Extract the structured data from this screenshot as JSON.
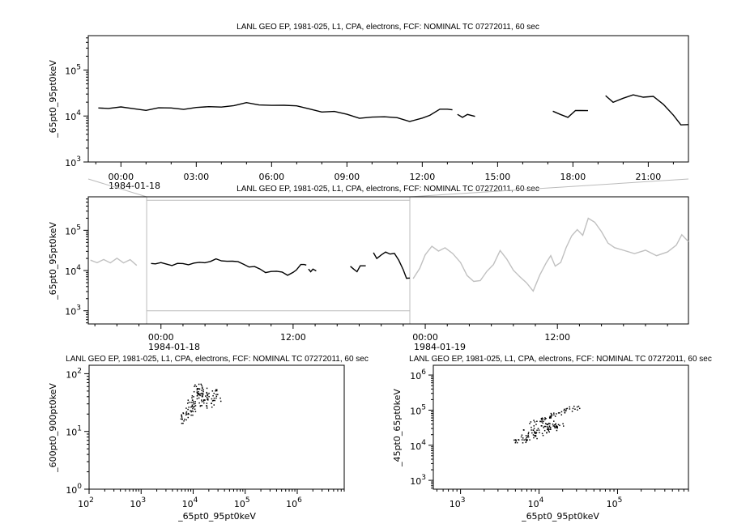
{
  "chart_data": [
    {
      "type": "line",
      "title": "LANL GEO EP, 1981-025, L1, CPA, electrons, FCF: NOMINAL TC 07272011, 60 sec",
      "ylabel": "_65pt0_95pt0keV",
      "xlabel": "",
      "x_units": "hours from 1984-01-18 00:00",
      "xlim": [
        -1.3,
        22.6
      ],
      "ylim": [
        1000,
        560000
      ],
      "yscale": "log",
      "x_tick_labels": [
        "00:00",
        "03:00",
        "06:00",
        "09:00",
        "12:00",
        "15:00",
        "18:00",
        "21:00"
      ],
      "date_label": "1984-01-18",
      "series": [
        {
          "color": "#000000",
          "segments": [
            [
              [
                -0.9,
                16000
              ],
              [
                -0.5,
                15500
              ],
              [
                0,
                15000
              ],
              [
                0.5,
                14000
              ],
              [
                1,
                14200
              ],
              [
                1.5,
                15000
              ],
              [
                2,
                14000
              ],
              [
                2.5,
                14500
              ],
              [
                3,
                16000
              ],
              [
                3.5,
                15000
              ],
              [
                4,
                15500
              ],
              [
                4.5,
                18000
              ],
              [
                5,
                19000
              ],
              [
                5.5,
                16500
              ],
              [
                6,
                18000
              ],
              [
                6.5,
                17500
              ],
              [
                7,
                15500
              ],
              [
                7.5,
                14500
              ],
              [
                8,
                13000
              ],
              [
                8.5,
                12000
              ],
              [
                9,
                10500
              ],
              [
                9.5,
                9500
              ],
              [
                10,
                9500
              ],
              [
                10.5,
                9000
              ],
              [
                11,
                9500
              ],
              [
                11.5,
                8000
              ],
              [
                12,
                8500
              ],
              [
                12.3,
                10500
              ],
              [
                12.7,
                14000
              ],
              [
                13,
                15000
              ],
              [
                13.2,
                13000
              ]
            ],
            [
              [
                13.4,
                11500
              ],
              [
                13.6,
                9000
              ],
              [
                13.8,
                11000
              ],
              [
                14.1,
                10500
              ]
            ],
            [
              [
                17.2,
                12000
              ],
              [
                17.5,
                11000
              ],
              [
                17.8,
                10000
              ],
              [
                18.1,
                13500
              ],
              [
                18.3,
                12500
              ],
              [
                18.6,
                13500
              ]
            ],
            [
              [
                19.3,
                26000
              ],
              [
                19.6,
                19000
              ],
              [
                20,
                23000
              ],
              [
                20.4,
                27000
              ],
              [
                20.8,
                24000
              ],
              [
                21.2,
                25000
              ],
              [
                21.6,
                17000
              ],
              [
                22,
                10000
              ],
              [
                22.3,
                6000
              ],
              [
                22.6,
                6500
              ]
            ]
          ]
        }
      ]
    },
    {
      "type": "line",
      "title": "LANL GEO EP, 1981-025, L1, CPA, electrons, FCF: NOMINAL TC 07272011, 60 sec",
      "ylabel": "_65pt0_95pt0keV",
      "x_units": "hours from 1984-01-18 00:00",
      "xlim": [
        -6.6,
        47.9
      ],
      "ylim": [
        470,
        680000
      ],
      "yscale": "log",
      "x_tick_labels": [
        "00:00",
        "12:00",
        "00:00",
        "12:00"
      ],
      "date_labels": [
        "1984-01-18",
        "1984-01-19"
      ],
      "highlight_range": [
        -1.3,
        22.6
      ],
      "series": [
        {
          "color": "#c0c0c0",
          "segments": [
            [
              [
                -6.4,
                17000
              ],
              [
                -5.8,
                16500
              ],
              [
                -5.2,
                18000
              ],
              [
                -4.6,
                16000
              ],
              [
                -4,
                20000
              ],
              [
                -3.4,
                15500
              ],
              [
                -2.8,
                19000
              ],
              [
                -2.2,
                13000
              ]
            ],
            [
              [
                22.9,
                6000
              ],
              [
                23.5,
                12000
              ],
              [
                24,
                25000
              ],
              [
                24.6,
                40000
              ],
              [
                25.2,
                30000
              ],
              [
                25.8,
                38000
              ],
              [
                26.5,
                25000
              ],
              [
                27.2,
                15000
              ],
              [
                27.8,
                8000
              ],
              [
                28.4,
                5000
              ],
              [
                29,
                6000
              ],
              [
                29.6,
                9000
              ],
              [
                30.2,
                15000
              ],
              [
                30.8,
                30000
              ],
              [
                31.4,
                20000
              ],
              [
                32,
                10000
              ],
              [
                32.6,
                7000
              ],
              [
                33.2,
                5000
              ],
              [
                33.8,
                3000
              ],
              [
                34.4,
                8000
              ],
              [
                35,
                15000
              ],
              [
                35.4,
                22000
              ],
              [
                35.8,
                12000
              ],
              [
                36.3,
                16000
              ],
              [
                36.8,
                40000
              ],
              [
                37.3,
                70000
              ],
              [
                37.8,
                100000
              ],
              [
                38.3,
                80000
              ],
              [
                38.8,
                200000
              ],
              [
                39.4,
                160000
              ],
              [
                40,
                90000
              ],
              [
                40.6,
                50000
              ],
              [
                41.2,
                35000
              ],
              [
                42,
                30000
              ],
              [
                43,
                28000
              ],
              [
                44,
                30000
              ],
              [
                45,
                25000
              ],
              [
                46,
                27000
              ],
              [
                46.8,
                40000
              ],
              [
                47.3,
                80000
              ],
              [
                47.9,
                50000
              ]
            ]
          ]
        },
        {
          "color": "#000000",
          "segments": "same as panel 1"
        }
      ]
    },
    {
      "type": "scatter",
      "title": "LANL GEO EP, 1981-025, L1, CPA, electrons, FCF: NOMINAL TC 07272011, 60 sec",
      "xlabel": "_65pt0_95pt0keV",
      "ylabel": "_600pt0_900pt0keV",
      "xscale": "log",
      "yscale": "log",
      "xlim": [
        100,
        8000000
      ],
      "ylim": [
        1,
        140
      ],
      "points": [
        [
          6000,
          15
        ],
        [
          6500,
          18
        ],
        [
          7000,
          20
        ],
        [
          6200,
          17
        ],
        [
          7500,
          22
        ],
        [
          8000,
          25
        ],
        [
          9000,
          30
        ],
        [
          9500,
          35
        ],
        [
          10000,
          28
        ],
        [
          10500,
          40
        ],
        [
          11000,
          45
        ],
        [
          12000,
          50
        ],
        [
          12500,
          42
        ],
        [
          13000,
          55
        ],
        [
          14000,
          48
        ],
        [
          15000,
          45
        ],
        [
          15500,
          40
        ],
        [
          16000,
          52
        ],
        [
          17000,
          38
        ],
        [
          18000,
          44
        ],
        [
          20000,
          35
        ],
        [
          22000,
          42
        ],
        [
          25000,
          46
        ],
        [
          28000,
          50
        ],
        [
          30000,
          38
        ],
        [
          12000,
          30
        ],
        [
          10000,
          25
        ],
        [
          9000,
          22
        ],
        [
          14000,
          35
        ],
        [
          16000,
          30
        ],
        [
          11000,
          60
        ],
        [
          13500,
          62
        ],
        [
          20000,
          28
        ],
        [
          8500,
          32
        ],
        [
          24000,
          33
        ]
      ]
    },
    {
      "type": "scatter",
      "title": "LANL GEO EP, 1981-025, L1, CPA, electrons, FCF: NOMINAL TC 07272011, 60 sec",
      "xlabel": "_65pt0_95pt0keV",
      "ylabel": "_45pt0_65pt0keV",
      "xscale": "log",
      "yscale": "log",
      "xlim": [
        450,
        800000
      ],
      "ylim": [
        560,
        1900000
      ],
      "points": [
        [
          5000,
          13000
        ],
        [
          5500,
          13500
        ],
        [
          6000,
          14000
        ],
        [
          6500,
          15000
        ],
        [
          7000,
          16000
        ],
        [
          7500,
          19000
        ],
        [
          8000,
          22000
        ],
        [
          8500,
          25000
        ],
        [
          9000,
          28000
        ],
        [
          9500,
          35000
        ],
        [
          10000,
          45000
        ],
        [
          10500,
          52000
        ],
        [
          11000,
          55000
        ],
        [
          12000,
          60000
        ],
        [
          13000,
          65000
        ],
        [
          14000,
          70000
        ],
        [
          15000,
          78000
        ],
        [
          17000,
          85000
        ],
        [
          19000,
          92000
        ],
        [
          21000,
          100000
        ],
        [
          24000,
          108000
        ],
        [
          27000,
          115000
        ],
        [
          30000,
          120000
        ],
        [
          9000,
          18000
        ],
        [
          10000,
          22000
        ],
        [
          11000,
          25000
        ],
        [
          12000,
          30000
        ],
        [
          13000,
          33000
        ],
        [
          14000,
          36000
        ],
        [
          15000,
          38000
        ],
        [
          16000,
          36000
        ],
        [
          17000,
          37000
        ],
        [
          18000,
          38000
        ],
        [
          15000,
          30000
        ],
        [
          13000,
          28000
        ],
        [
          8000,
          48000
        ],
        [
          7000,
          30000
        ],
        [
          6500,
          20000
        ],
        [
          12000,
          40000
        ],
        [
          14000,
          45000
        ]
      ]
    }
  ],
  "dates": {
    "d1": "1984-01-18",
    "d2": "1984-01-19"
  }
}
